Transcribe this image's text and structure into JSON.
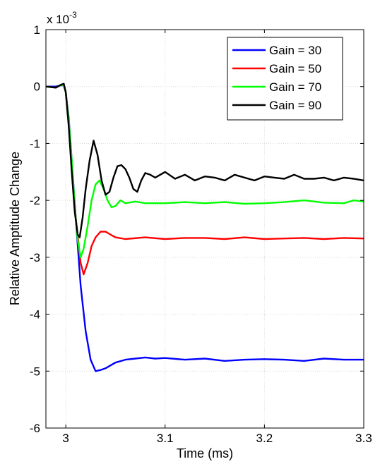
{
  "chart_data": {
    "type": "line",
    "xlabel": "Time (ms)",
    "ylabel": "Relative Amptitude Change",
    "y_multiplier": "x 10",
    "y_exponent": "-3",
    "xlim": [
      2.98,
      3.3
    ],
    "ylim": [
      -6,
      1
    ],
    "x_ticks": [
      3,
      3.1,
      3.2,
      3.3
    ],
    "x_tick_labels": [
      "3",
      "3.1",
      "3.2",
      "3.3"
    ],
    "y_ticks": [
      1,
      0,
      -1,
      -2,
      -3,
      -4,
      -5,
      -6
    ],
    "y_tick_labels": [
      "1",
      "0",
      "-1",
      "-2",
      "-3",
      "-4",
      "-5",
      "-6"
    ],
    "grid": true,
    "legend_position": "top-right",
    "series": [
      {
        "name": "Gain = 30",
        "color": "#0000ff",
        "x": [
          2.98,
          2.99,
          2.995,
          2.998,
          3.0,
          3.003,
          3.006,
          3.01,
          3.015,
          3.02,
          3.025,
          3.03,
          3.035,
          3.04,
          3.05,
          3.06,
          3.07,
          3.08,
          3.09,
          3.1,
          3.12,
          3.14,
          3.16,
          3.18,
          3.2,
          3.22,
          3.24,
          3.26,
          3.28,
          3.3
        ],
        "values": [
          0.0,
          0.0,
          0.02,
          0.02,
          -0.1,
          -0.55,
          -1.3,
          -2.3,
          -3.5,
          -4.3,
          -4.8,
          -5.0,
          -4.98,
          -4.95,
          -4.85,
          -4.8,
          -4.78,
          -4.76,
          -4.78,
          -4.77,
          -4.8,
          -4.78,
          -4.82,
          -4.8,
          -4.79,
          -4.8,
          -4.82,
          -4.78,
          -4.8,
          -4.8
        ]
      },
      {
        "name": "Gain = 50",
        "color": "#ff0000",
        "x": [
          2.98,
          2.99,
          2.995,
          2.998,
          3.0,
          3.003,
          3.006,
          3.01,
          3.015,
          3.018,
          3.022,
          3.026,
          3.03,
          3.035,
          3.04,
          3.045,
          3.05,
          3.06,
          3.08,
          3.1,
          3.12,
          3.14,
          3.16,
          3.18,
          3.2,
          3.22,
          3.24,
          3.26,
          3.28,
          3.3
        ],
        "values": [
          0.0,
          -0.02,
          0.03,
          0.02,
          -0.1,
          -0.6,
          -1.4,
          -2.3,
          -3.1,
          -3.3,
          -3.1,
          -2.8,
          -2.65,
          -2.55,
          -2.55,
          -2.6,
          -2.65,
          -2.68,
          -2.65,
          -2.68,
          -2.66,
          -2.66,
          -2.68,
          -2.65,
          -2.68,
          -2.67,
          -2.66,
          -2.68,
          -2.66,
          -2.67
        ]
      },
      {
        "name": "Gain = 70",
        "color": "#00ff00",
        "x": [
          2.98,
          2.99,
          2.995,
          2.998,
          3.0,
          3.003,
          3.006,
          3.009,
          3.012,
          3.015,
          3.018,
          3.022,
          3.026,
          3.03,
          3.034,
          3.038,
          3.042,
          3.046,
          3.05,
          3.055,
          3.06,
          3.07,
          3.08,
          3.1,
          3.12,
          3.14,
          3.16,
          3.18,
          3.2,
          3.22,
          3.24,
          3.26,
          3.28,
          3.29,
          3.3
        ],
        "values": [
          0.0,
          -0.02,
          0.03,
          0.02,
          -0.1,
          -0.6,
          -1.3,
          -2.1,
          -2.7,
          -3.0,
          -2.85,
          -2.45,
          -2.0,
          -1.72,
          -1.65,
          -1.8,
          -2.0,
          -2.12,
          -2.1,
          -2.0,
          -2.05,
          -2.02,
          -2.05,
          -2.05,
          -2.03,
          -2.05,
          -2.03,
          -2.06,
          -2.05,
          -2.03,
          -2.0,
          -2.04,
          -2.05,
          -2.0,
          -2.02
        ]
      },
      {
        "name": "Gain = 90",
        "color": "#000000",
        "x": [
          2.98,
          2.99,
          2.995,
          2.998,
          3.0,
          3.003,
          3.006,
          3.009,
          3.012,
          3.014,
          3.017,
          3.02,
          3.024,
          3.028,
          3.032,
          3.036,
          3.04,
          3.044,
          3.048,
          3.052,
          3.056,
          3.06,
          3.064,
          3.068,
          3.072,
          3.076,
          3.08,
          3.085,
          3.09,
          3.1,
          3.11,
          3.12,
          3.13,
          3.14,
          3.15,
          3.16,
          3.17,
          3.18,
          3.19,
          3.2,
          3.21,
          3.22,
          3.23,
          3.24,
          3.25,
          3.26,
          3.27,
          3.28,
          3.29,
          3.3
        ],
        "values": [
          0.0,
          -0.02,
          0.03,
          0.05,
          -0.1,
          -0.7,
          -1.5,
          -2.2,
          -2.6,
          -2.65,
          -2.3,
          -1.8,
          -1.3,
          -0.95,
          -1.2,
          -1.65,
          -1.9,
          -1.85,
          -1.6,
          -1.4,
          -1.38,
          -1.45,
          -1.6,
          -1.8,
          -1.85,
          -1.65,
          -1.52,
          -1.55,
          -1.6,
          -1.5,
          -1.62,
          -1.55,
          -1.65,
          -1.58,
          -1.6,
          -1.65,
          -1.55,
          -1.6,
          -1.65,
          -1.58,
          -1.6,
          -1.62,
          -1.55,
          -1.62,
          -1.62,
          -1.6,
          -1.65,
          -1.6,
          -1.62,
          -1.65
        ]
      }
    ]
  }
}
